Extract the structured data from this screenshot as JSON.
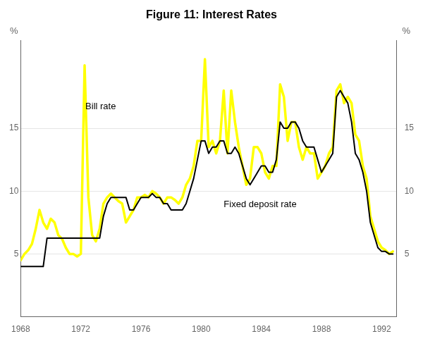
{
  "chart_data": {
    "type": "line",
    "title": "Figure 11: Interest Rates",
    "ylabel": "%",
    "y2label": "%",
    "xlim": [
      1968,
      1993
    ],
    "xticks": [
      1968,
      1972,
      1976,
      1980,
      1984,
      1988,
      1992
    ],
    "ylim": [
      0,
      22
    ],
    "yticks": [
      5,
      10,
      15
    ],
    "y2lim": [
      0,
      22
    ],
    "y2ticks": [
      5,
      10,
      15
    ],
    "grid": true,
    "x": [
      1968.0,
      1968.25,
      1968.5,
      1968.75,
      1969.0,
      1969.25,
      1969.5,
      1969.75,
      1970.0,
      1970.25,
      1970.5,
      1970.75,
      1971.0,
      1971.25,
      1971.5,
      1971.75,
      1972.0,
      1972.25,
      1972.5,
      1972.75,
      1973.0,
      1973.25,
      1973.5,
      1973.75,
      1974.0,
      1974.25,
      1974.5,
      1974.75,
      1975.0,
      1975.25,
      1975.5,
      1975.75,
      1976.0,
      1976.25,
      1976.5,
      1976.75,
      1977.0,
      1977.25,
      1977.5,
      1977.75,
      1978.0,
      1978.25,
      1978.5,
      1978.75,
      1979.0,
      1979.25,
      1979.5,
      1979.75,
      1980.0,
      1980.25,
      1980.5,
      1980.75,
      1981.0,
      1981.25,
      1981.5,
      1981.75,
      1982.0,
      1982.25,
      1982.5,
      1982.75,
      1983.0,
      1983.25,
      1983.5,
      1983.75,
      1984.0,
      1984.25,
      1984.5,
      1984.75,
      1985.0,
      1985.25,
      1985.5,
      1985.75,
      1986.0,
      1986.25,
      1986.5,
      1986.75,
      1987.0,
      1987.25,
      1987.5,
      1987.75,
      1988.0,
      1988.25,
      1988.5,
      1988.75,
      1989.0,
      1989.25,
      1989.5,
      1989.75,
      1990.0,
      1990.25,
      1990.5,
      1990.75,
      1991.0,
      1991.25,
      1991.5,
      1991.75,
      1992.0,
      1992.25,
      1992.5,
      1992.75
    ],
    "series": [
      {
        "color": "#ffff00",
        "values": [
          4.5,
          5.0,
          5.3,
          5.8,
          7.0,
          8.5,
          7.5,
          7.0,
          7.8,
          7.5,
          6.5,
          6.2,
          5.5,
          5.0,
          5.0,
          4.8,
          5.0,
          20.0,
          9.5,
          6.5,
          6.0,
          7.0,
          9.0,
          9.5,
          9.8,
          9.5,
          9.2,
          9.0,
          7.5,
          8.0,
          8.5,
          9.5,
          9.5,
          9.7,
          9.5,
          10.0,
          9.8,
          9.5,
          9.0,
          9.5,
          9.5,
          9.3,
          9.0,
          9.5,
          10.5,
          11.0,
          12.0,
          14.0,
          14.0,
          20.5,
          13.5,
          14.0,
          13.0,
          14.0,
          18.0,
          13.0,
          18.0,
          15.5,
          13.5,
          12.0,
          10.5,
          11.0,
          13.5,
          13.5,
          13.0,
          11.5,
          11.0,
          12.0,
          12.0,
          18.5,
          17.5,
          14.0,
          15.5,
          15.5,
          13.5,
          12.5,
          13.5,
          13.0,
          13.0,
          11.0,
          11.5,
          12.0,
          13.0,
          13.5,
          18.0,
          18.5,
          17.0,
          17.5,
          17.0,
          14.5,
          14.0,
          12.0,
          11.0,
          8.0,
          7.0,
          6.0,
          5.5,
          5.3,
          5.0,
          5.2
        ]
      },
      {
        "color": "#000000",
        "values": [
          4.0,
          4.0,
          4.0,
          4.0,
          4.0,
          4.0,
          4.0,
          6.25,
          6.25,
          6.25,
          6.25,
          6.25,
          6.25,
          6.25,
          6.25,
          6.25,
          6.25,
          6.25,
          6.25,
          6.25,
          6.25,
          6.25,
          8.0,
          9.0,
          9.5,
          9.5,
          9.5,
          9.5,
          9.5,
          8.5,
          8.5,
          9.0,
          9.5,
          9.5,
          9.5,
          9.8,
          9.5,
          9.5,
          9.0,
          9.0,
          8.5,
          8.5,
          8.5,
          8.5,
          9.0,
          10.0,
          11.0,
          12.5,
          14.0,
          14.0,
          13.0,
          13.5,
          13.5,
          14.0,
          14.0,
          13.0,
          13.0,
          13.5,
          13.0,
          12.0,
          11.0,
          10.5,
          11.0,
          11.5,
          12.0,
          12.0,
          11.5,
          11.5,
          12.5,
          15.5,
          15.0,
          15.0,
          15.5,
          15.5,
          15.0,
          14.0,
          13.5,
          13.5,
          13.5,
          12.5,
          11.5,
          12.0,
          12.5,
          13.0,
          17.5,
          18.0,
          17.5,
          17.0,
          15.5,
          13.0,
          12.5,
          11.5,
          10.0,
          7.5,
          6.5,
          5.5,
          5.2,
          5.2,
          5.0,
          5.0
        ]
      }
    ],
    "annotations": [
      {
        "text": "Bill rate",
        "x": 1972.3,
        "y": 16.5
      },
      {
        "text": "Fixed deposit rate",
        "x": 1981.5,
        "y": 8.7
      }
    ]
  }
}
